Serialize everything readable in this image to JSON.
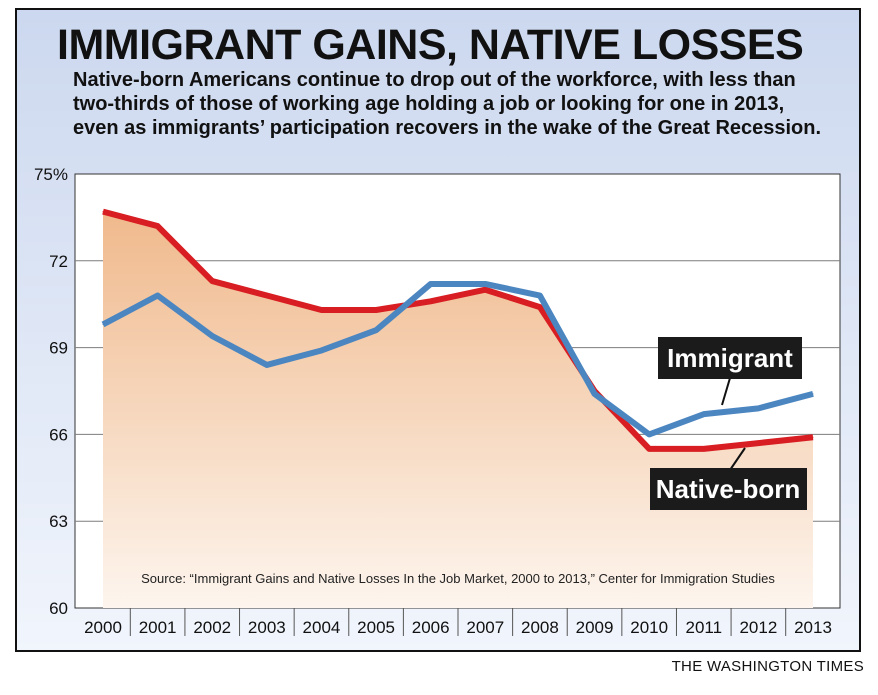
{
  "title": "IMMIGRANT GAINS, NATIVE LOSSES",
  "subtitle": "Native-born Americans continue to drop out of the workforce, with less than two-thirds of those of working age holding a job or looking for one in 2013, even as immigrants’ participation recovers in the wake of the Great Recession.",
  "source": "Source: “Immigrant Gains and Native Losses In the Job Market, 2000 to 2013,” Center for Immigration Studies",
  "credit": "THE WASHINGTON TIMES",
  "colors": {
    "native": "#d81e22",
    "immigrant": "#4b86c1",
    "fill_top": "#f0b98c",
    "fill_bottom": "#fdf5ee",
    "background_top": "#ccd8ef",
    "background_bottom": "#f1f5fc"
  },
  "chart_data": {
    "type": "line",
    "x": [
      "2000",
      "2001",
      "2002",
      "2003",
      "2004",
      "2005",
      "2006",
      "2007",
      "2008",
      "2009",
      "2010",
      "2011",
      "2012",
      "2013"
    ],
    "ylim": [
      60,
      75
    ],
    "yticks": [
      75,
      72,
      69,
      66,
      63,
      60
    ],
    "ytick_labels": [
      "75%",
      "72",
      "69",
      "66",
      "63",
      "60"
    ],
    "grid": true,
    "series": [
      {
        "name": "Immigrant",
        "values": [
          69.8,
          70.8,
          69.4,
          68.4,
          68.9,
          69.6,
          71.2,
          71.2,
          70.8,
          67.4,
          66.0,
          66.7,
          66.9,
          67.4
        ]
      },
      {
        "name": "Native-born",
        "values": [
          73.7,
          73.2,
          71.3,
          70.8,
          70.3,
          70.3,
          70.6,
          71.0,
          70.4,
          67.5,
          65.5,
          65.5,
          65.7,
          65.9
        ]
      }
    ]
  }
}
